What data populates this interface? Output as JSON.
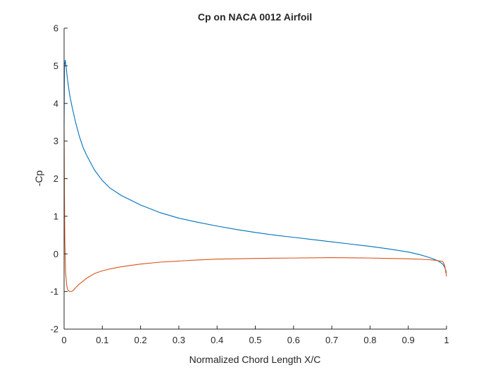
{
  "chart_data": {
    "type": "line",
    "title": "Cp on NACA 0012 Airfoil",
    "xlabel": "Normalized Chord Length X/C",
    "ylabel": "-Cp",
    "xlim": [
      0,
      1
    ],
    "ylim": [
      -2,
      6
    ],
    "xticks": [
      0,
      0.1,
      0.2,
      0.3,
      0.4,
      0.5,
      0.6,
      0.7,
      0.8,
      0.9,
      1
    ],
    "xtick_labels": [
      "0",
      "0.1",
      "0.2",
      "0.3",
      "0.4",
      "0.5",
      "0.6",
      "0.7",
      "0.8",
      "0.9",
      "1"
    ],
    "yticks": [
      -2,
      -1,
      0,
      1,
      2,
      3,
      4,
      5,
      6
    ],
    "ytick_labels": [
      "-2",
      "-1",
      "0",
      "1",
      "2",
      "3",
      "4",
      "5",
      "6"
    ],
    "grid": false,
    "legend": "none",
    "series": [
      {
        "color": "#0072BD",
        "x": [
          0,
          0.001,
          0.003,
          0.006,
          0.01,
          0.015,
          0.02,
          0.03,
          0.04,
          0.05,
          0.06,
          0.08,
          0.1,
          0.12,
          0.15,
          0.2,
          0.25,
          0.3,
          0.35,
          0.4,
          0.45,
          0.5,
          0.55,
          0.6,
          0.65,
          0.7,
          0.75,
          0.8,
          0.85,
          0.9,
          0.93,
          0.95,
          0.97,
          0.98,
          0.99,
          0.995,
          1.0
        ],
        "y": [
          3.4,
          5.0,
          5.15,
          4.9,
          4.55,
          4.2,
          3.95,
          3.5,
          3.12,
          2.82,
          2.6,
          2.22,
          1.95,
          1.75,
          1.55,
          1.3,
          1.1,
          0.95,
          0.84,
          0.74,
          0.65,
          0.57,
          0.5,
          0.44,
          0.38,
          0.32,
          0.26,
          0.2,
          0.13,
          0.05,
          -0.02,
          -0.08,
          -0.15,
          -0.2,
          -0.27,
          -0.35,
          -0.5
        ]
      },
      {
        "color": "#D95319",
        "x": [
          0,
          0.001,
          0.002,
          0.004,
          0.007,
          0.01,
          0.015,
          0.02,
          0.025,
          0.03,
          0.04,
          0.05,
          0.06,
          0.08,
          0.1,
          0.12,
          0.15,
          0.2,
          0.25,
          0.3,
          0.35,
          0.4,
          0.5,
          0.6,
          0.7,
          0.8,
          0.85,
          0.9,
          0.95,
          0.97,
          0.99,
          0.995,
          1.0
        ],
        "y": [
          3.4,
          1.5,
          0.3,
          -0.5,
          -0.85,
          -0.97,
          -1.0,
          -1.0,
          -0.96,
          -0.9,
          -0.8,
          -0.72,
          -0.64,
          -0.52,
          -0.45,
          -0.4,
          -0.34,
          -0.27,
          -0.22,
          -0.19,
          -0.16,
          -0.14,
          -0.12,
          -0.11,
          -0.1,
          -0.11,
          -0.12,
          -0.13,
          -0.15,
          -0.17,
          -0.2,
          -0.3,
          -0.6
        ]
      }
    ]
  }
}
